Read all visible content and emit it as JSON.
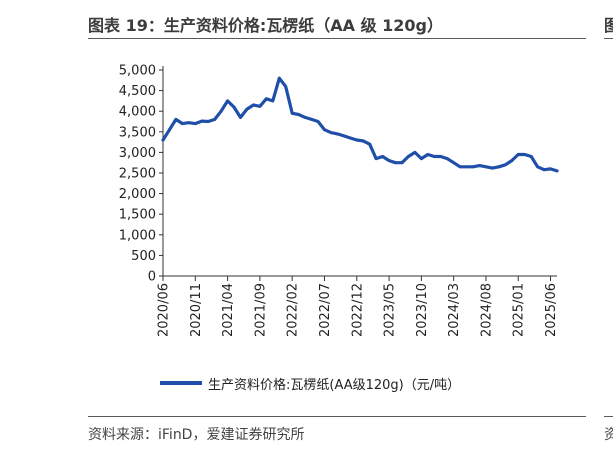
{
  "header": {
    "title": "图表 19：生产资料价格:瓦楞纸（AA 级 120g）",
    "right_title_fragment": "图"
  },
  "footer": {
    "source": "资料来源：iFinD，爱建证券研究所",
    "right_source_fragment": "资"
  },
  "colors": {
    "series": "#1f4fa8",
    "axis": "#333333",
    "rule": "#5a5a5a"
  },
  "chart_data": {
    "type": "line",
    "title": "图表 19：生产资料价格:瓦楞纸（AA 级 120g）",
    "xlabel": "",
    "ylabel": "",
    "ylim": [
      0,
      5000
    ],
    "grid": false,
    "legend_position": "bottom",
    "y_ticks": [
      0,
      500,
      1000,
      1500,
      2000,
      2500,
      3000,
      3500,
      4000,
      4500,
      5000
    ],
    "y_tick_labels": [
      "0",
      "500",
      "1,000",
      "1,500",
      "2,000",
      "2,500",
      "3,000",
      "3,500",
      "4,000",
      "4,500",
      "5,000"
    ],
    "x_ticks": [
      "2020/06",
      "2020/11",
      "2021/04",
      "2021/09",
      "2022/02",
      "2022/07",
      "2022/12",
      "2023/05",
      "2023/10",
      "2024/03",
      "2024/08",
      "2025/01",
      "2025/06"
    ],
    "x_range": [
      "2020/06",
      "2025/07"
    ],
    "series": [
      {
        "name": "生产资料价格:瓦楞纸(AA级120g)（元/吨）",
        "points": [
          [
            "2020/06",
            3300
          ],
          [
            "2020/07",
            3550
          ],
          [
            "2020/08",
            3800
          ],
          [
            "2020/09",
            3700
          ],
          [
            "2020/10",
            3720
          ],
          [
            "2020/11",
            3700
          ],
          [
            "2020/12",
            3760
          ],
          [
            "2021/01",
            3750
          ],
          [
            "2021/02",
            3800
          ],
          [
            "2021/03",
            4000
          ],
          [
            "2021/04",
            4250
          ],
          [
            "2021/05",
            4100
          ],
          [
            "2021/06",
            3850
          ],
          [
            "2021/07",
            4050
          ],
          [
            "2021/08",
            4150
          ],
          [
            "2021/09",
            4120
          ],
          [
            "2021/10",
            4300
          ],
          [
            "2021/11",
            4250
          ],
          [
            "2021/12",
            4800
          ],
          [
            "2022/01",
            4600
          ],
          [
            "2022/02",
            3950
          ],
          [
            "2022/03",
            3920
          ],
          [
            "2022/04",
            3850
          ],
          [
            "2022/05",
            3800
          ],
          [
            "2022/06",
            3750
          ],
          [
            "2022/07",
            3550
          ],
          [
            "2022/08",
            3480
          ],
          [
            "2022/09",
            3450
          ],
          [
            "2022/10",
            3400
          ],
          [
            "2022/11",
            3350
          ],
          [
            "2022/12",
            3300
          ],
          [
            "2023/01",
            3280
          ],
          [
            "2023/02",
            3200
          ],
          [
            "2023/03",
            2850
          ],
          [
            "2023/04",
            2900
          ],
          [
            "2023/05",
            2800
          ],
          [
            "2023/06",
            2750
          ],
          [
            "2023/07",
            2750
          ],
          [
            "2023/08",
            2900
          ],
          [
            "2023/09",
            3000
          ],
          [
            "2023/10",
            2850
          ],
          [
            "2023/11",
            2950
          ],
          [
            "2023/12",
            2900
          ],
          [
            "2024/01",
            2900
          ],
          [
            "2024/02",
            2850
          ],
          [
            "2024/03",
            2750
          ],
          [
            "2024/04",
            2650
          ],
          [
            "2024/05",
            2650
          ],
          [
            "2024/06",
            2650
          ],
          [
            "2024/07",
            2680
          ],
          [
            "2024/08",
            2650
          ],
          [
            "2024/09",
            2620
          ],
          [
            "2024/10",
            2650
          ],
          [
            "2024/11",
            2700
          ],
          [
            "2024/12",
            2800
          ],
          [
            "2025/01",
            2950
          ],
          [
            "2025/02",
            2950
          ],
          [
            "2025/03",
            2900
          ],
          [
            "2025/04",
            2650
          ],
          [
            "2025/05",
            2580
          ],
          [
            "2025/06",
            2600
          ],
          [
            "2025/07",
            2550
          ]
        ]
      }
    ]
  }
}
